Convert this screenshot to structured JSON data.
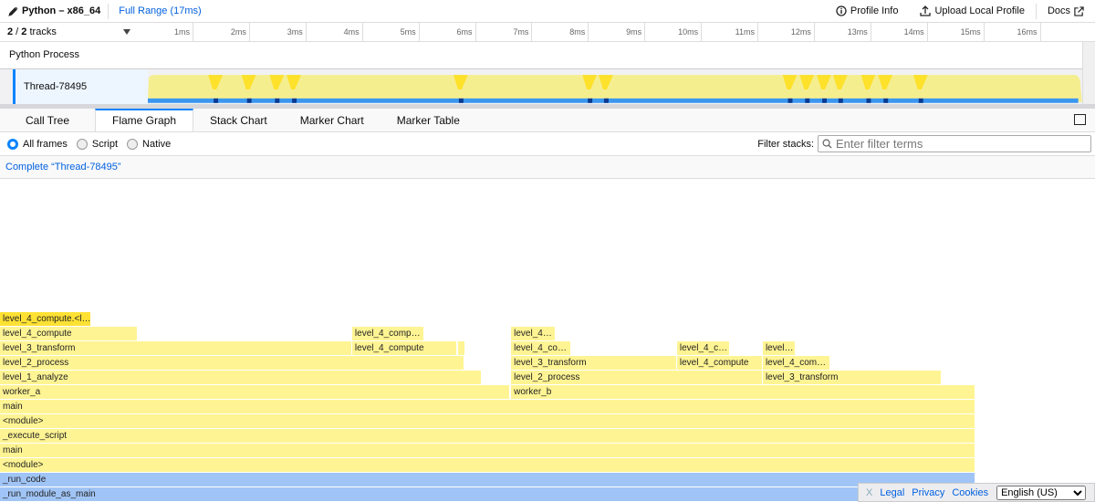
{
  "topbar": {
    "title": "Python – x86_64",
    "range": "Full Range (17ms)",
    "profile_info": "Profile Info",
    "upload": "Upload Local Profile",
    "docs": "Docs"
  },
  "timeline": {
    "tracks_visible": "2",
    "tracks_total": "2",
    "tracks_label": "tracks",
    "ticks": [
      "1ms",
      "2ms",
      "3ms",
      "4ms",
      "5ms",
      "6ms",
      "7ms",
      "8ms",
      "9ms",
      "10ms",
      "11ms",
      "12ms",
      "13ms",
      "14ms",
      "15ms",
      "16ms"
    ],
    "process": "Python Process",
    "thread": "Thread-78495"
  },
  "tabs": [
    "Call Tree",
    "Flame Graph",
    "Stack Chart",
    "Marker Chart",
    "Marker Table"
  ],
  "active_tab": "Flame Graph",
  "settings": {
    "all_frames": "All frames",
    "script": "Script",
    "native": "Native",
    "filter_label": "Filter stacks:",
    "filter_placeholder": "Enter filter terms"
  },
  "breadcrumb": "Complete “Thread-78495”",
  "flame_graph": {
    "unit": "percent of samples",
    "rows": [
      [
        {
          "label": "_run_module_as_main",
          "start": 0,
          "share": 100,
          "category": "blue"
        }
      ],
      [
        {
          "label": "_run_code",
          "start": 0,
          "share": 100,
          "category": "blue"
        }
      ],
      [
        {
          "label": "<module>",
          "start": 0,
          "share": 100
        }
      ],
      [
        {
          "label": "main",
          "start": 0,
          "share": 100
        }
      ],
      [
        {
          "label": "_execute_script",
          "start": 0,
          "share": 100
        }
      ],
      [
        {
          "label": "<module>",
          "start": 0,
          "share": 100
        }
      ],
      [
        {
          "label": "main",
          "start": 0,
          "share": 100
        }
      ],
      [
        {
          "label": "worker_a",
          "start": 0,
          "share": 52.3
        },
        {
          "label": "worker_b",
          "start": 52.4,
          "share": 47.6
        }
      ],
      [
        {
          "label": "level_1_analyze",
          "start": 0,
          "share": 49.4
        },
        {
          "label": "level_2_process",
          "start": 52.4,
          "share": 25.8
        },
        {
          "label": "level_3_transform",
          "start": 78.2,
          "share": 18.3
        }
      ],
      [
        {
          "label": "level_2_process",
          "start": 0,
          "share": 47.6
        },
        {
          "label": "level_3_transform",
          "start": 52.4,
          "share": 17.0
        },
        {
          "label": "level_4_compute",
          "start": 69.4,
          "share": 8.8
        },
        {
          "label": "level_4_com…",
          "start": 78.2,
          "share": 6.9
        }
      ],
      [
        {
          "label": "level_3_transform",
          "start": 0,
          "share": 36.1
        },
        {
          "label": "level_4_compute",
          "start": 36.1,
          "share": 10.8
        },
        {
          "label": "",
          "start": 47.0,
          "share": 0.7
        },
        {
          "label": "level_4_co…",
          "start": 52.4,
          "share": 6.2
        },
        {
          "label": "level_4_c…",
          "start": 69.4,
          "share": 5.4
        },
        {
          "label": "level…",
          "start": 78.2,
          "share": 3.4
        }
      ],
      [
        {
          "label": "level_4_compute",
          "start": 0,
          "share": 14.1
        },
        {
          "label": "level_4_comp…",
          "start": 36.1,
          "share": 7.4
        },
        {
          "label": "level_4…",
          "start": 52.4,
          "share": 4.6
        }
      ],
      [
        {
          "label": "level_4_compute.<l…",
          "start": 0,
          "share": 9.4,
          "selected": true
        }
      ]
    ]
  },
  "footer": {
    "close": "X",
    "legal": "Legal",
    "privacy": "Privacy",
    "cookies": "Cookies",
    "language": "English (US)"
  }
}
